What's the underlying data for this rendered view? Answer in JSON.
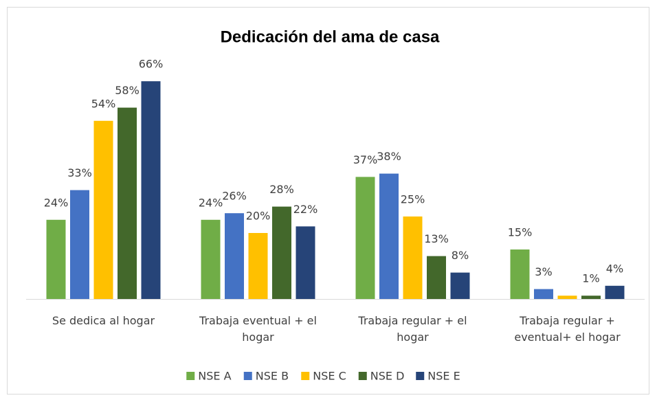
{
  "chart_data": {
    "type": "bar",
    "title": "Dedicación del ama de casa",
    "categories": [
      "Se dedica al hogar",
      "Trabaja eventual + el hogar",
      "Trabaja regular + el hogar",
      "Trabaja regular + eventual+ el hogar"
    ],
    "series": [
      {
        "name": "NSE A",
        "color": "#70ad47",
        "values": [
          24,
          24,
          37,
          15
        ],
        "value_labels": [
          "24%",
          "24%",
          "37%",
          "15%"
        ]
      },
      {
        "name": "NSE B",
        "color": "#4472c4",
        "values": [
          33,
          26,
          38,
          3
        ],
        "value_labels": [
          "33%",
          "26%",
          "38%",
          "3%"
        ]
      },
      {
        "name": "NSE C",
        "color": "#ffc000",
        "values": [
          54,
          20,
          25,
          1
        ],
        "value_labels": [
          "54%",
          "20%",
          "25%",
          null
        ]
      },
      {
        "name": "NSE D",
        "color": "#43682b",
        "values": [
          58,
          28,
          13,
          1
        ],
        "value_labels": [
          "58%",
          "28%",
          "13%",
          "1%"
        ]
      },
      {
        "name": "NSE E",
        "color": "#264478",
        "values": [
          66,
          22,
          8,
          4
        ],
        "value_labels": [
          "66%",
          "22%",
          "8%",
          "4%"
        ]
      }
    ],
    "legend": "bottom"
  }
}
